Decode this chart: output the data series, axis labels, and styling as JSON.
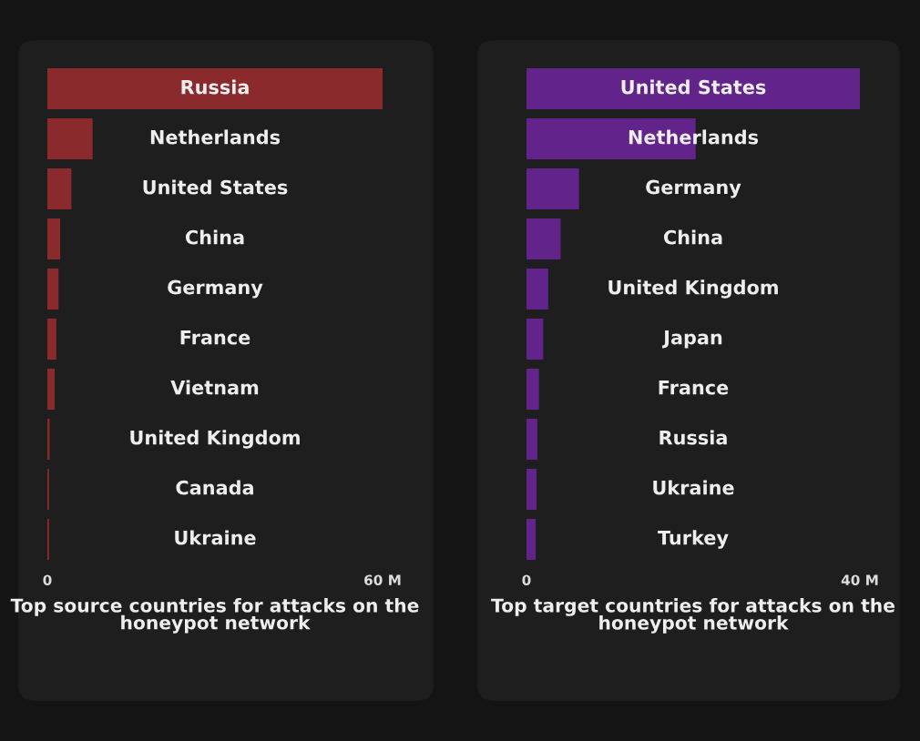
{
  "chart_data": [
    {
      "type": "bar",
      "orientation": "horizontal",
      "xlabel": "Top source countries for attacks on the honeypot network",
      "categories": [
        "Russia",
        "Netherlands",
        "United States",
        "China",
        "Germany",
        "France",
        "Vietnam",
        "United Kingdom",
        "Canada",
        "Ukraine"
      ],
      "values": [
        60,
        8.1,
        4.3,
        2.3,
        2.0,
        1.6,
        1.3,
        0.4,
        0.3,
        0.3
      ],
      "color": "#8b2a2d",
      "xlim": [
        0,
        60
      ],
      "xticks": [
        0,
        {
          "value": 60,
          "label": "60 M"
        }
      ],
      "grid": false,
      "legend": false
    },
    {
      "type": "bar",
      "orientation": "horizontal",
      "xlabel": "Top target countries for attacks on the honeypot network",
      "categories": [
        "United States",
        "Netherlands",
        "Germany",
        "China",
        "United Kingdom",
        "Japan",
        "France",
        "Russia",
        "Ukraine",
        "Turkey"
      ],
      "values": [
        40,
        20.3,
        6.3,
        4.1,
        2.6,
        2.0,
        1.5,
        1.3,
        1.2,
        1.1
      ],
      "color": "#62248a",
      "xlim": [
        0,
        40
      ],
      "xticks": [
        0,
        {
          "value": 40,
          "label": "40 M"
        }
      ],
      "grid": false,
      "legend": false
    }
  ]
}
